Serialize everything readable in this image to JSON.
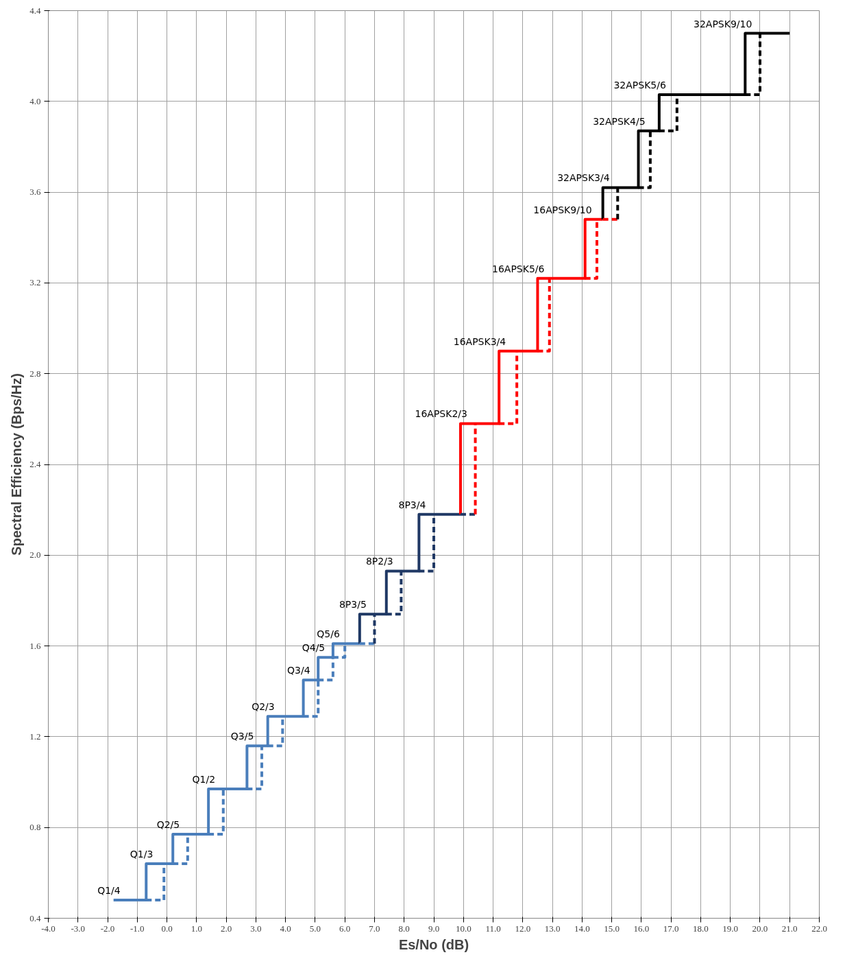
{
  "chart_data": {
    "type": "line",
    "xlabel": "Es/No (dB)",
    "ylabel": "Spectral Efficiency (Bps/Hz)",
    "xlim": [
      -4,
      22
    ],
    "ylim": [
      0.4,
      4.4
    ],
    "xticks": [
      {
        "value": -4,
        "label": "-4.0"
      },
      {
        "value": -3,
        "label": "-3.0"
      },
      {
        "value": -2,
        "label": "-2.0"
      },
      {
        "value": -1,
        "label": "-1.0"
      },
      {
        "value": 0,
        "label": "0.0"
      },
      {
        "value": 1,
        "label": "1.0"
      },
      {
        "value": 2,
        "label": "2.0"
      },
      {
        "value": 3,
        "label": "3.0"
      },
      {
        "value": 4,
        "label": "4.0"
      },
      {
        "value": 5,
        "label": "5.0"
      },
      {
        "value": 6,
        "label": "6.0"
      },
      {
        "value": 7,
        "label": "7.0"
      },
      {
        "value": 8,
        "label": "8.0"
      },
      {
        "value": 9,
        "label": "9.0"
      },
      {
        "value": 10,
        "label": "10.0"
      },
      {
        "value": 11,
        "label": "11.0"
      },
      {
        "value": 12,
        "label": "12.0"
      },
      {
        "value": 13,
        "label": "13.0"
      },
      {
        "value": 14,
        "label": "14.0"
      },
      {
        "value": 15,
        "label": "15.0"
      },
      {
        "value": 16,
        "label": "16.0"
      },
      {
        "value": 17,
        "label": "17.0"
      },
      {
        "value": 18,
        "label": "18.0"
      },
      {
        "value": 19,
        "label": "19.0"
      },
      {
        "value": 20,
        "label": "20.0"
      },
      {
        "value": 21,
        "label": "21.0"
      },
      {
        "value": 22,
        "label": "22.0"
      }
    ],
    "yticks": [
      0.4,
      0.8,
      1.2,
      1.6,
      {
        "value": 2.0,
        "label": "2.0"
      },
      2.4,
      2.8,
      3.2,
      3.6,
      {
        "value": 4.0,
        "label": "4.0"
      },
      4.4
    ],
    "grid": true,
    "series": [
      {
        "color": "#4a7ebb",
        "line_style": "solid",
        "x": [
          6.5,
          5.6,
          5.6,
          5.1,
          5.1,
          4.6,
          4.6,
          3.4,
          3.4,
          2.7,
          2.7,
          1.4,
          1.4,
          0.2,
          0.2,
          -0.7,
          -0.7,
          -1.8
        ],
        "values": [
          1.61,
          1.61,
          1.55,
          1.55,
          1.45,
          1.45,
          1.29,
          1.29,
          1.16,
          1.16,
          0.97,
          0.97,
          0.77,
          0.77,
          0.64,
          0.64,
          0.48,
          0.48
        ]
      },
      {
        "color": "#1f3864",
        "line_style": "solid",
        "x": [
          9.9,
          8.5,
          8.5,
          7.4,
          7.4,
          6.5,
          6.5
        ],
        "values": [
          2.18,
          2.18,
          1.93,
          1.93,
          1.74,
          1.74,
          1.61
        ]
      },
      {
        "color": "#ff0000",
        "line_style": "solid",
        "x": [
          14.7,
          14.1,
          14.1,
          12.5,
          12.5,
          11.2,
          11.2,
          9.9,
          9.9
        ],
        "values": [
          3.48,
          3.48,
          3.22,
          3.22,
          2.9,
          2.9,
          2.58,
          2.58,
          2.18
        ]
      },
      {
        "color": "#000000",
        "line_style": "solid",
        "x": [
          21.0,
          19.5,
          19.5,
          16.6,
          16.6,
          15.9,
          15.9,
          14.7,
          14.7
        ],
        "values": [
          4.3,
          4.3,
          4.03,
          4.03,
          3.87,
          3.87,
          3.62,
          3.62,
          3.48
        ]
      },
      {
        "color": "#4a7ebb",
        "line_style": "dashed",
        "x": [
          -0.7,
          -0.1,
          -0.1,
          null,
          0.2,
          0.7,
          0.7,
          null,
          1.4,
          1.9,
          1.9,
          null,
          2.7,
          3.2,
          3.2,
          null,
          3.4,
          3.9,
          3.9,
          null,
          4.6,
          5.1,
          5.1,
          null,
          5.1,
          5.6,
          5.6,
          null,
          5.6,
          6.0,
          6.0,
          null,
          6.5,
          7.0
        ],
        "values": [
          0.48,
          0.48,
          0.64,
          null,
          0.64,
          0.64,
          0.77,
          null,
          0.77,
          0.77,
          0.97,
          null,
          0.97,
          0.97,
          1.16,
          null,
          1.16,
          1.16,
          1.29,
          null,
          1.29,
          1.29,
          1.45,
          null,
          1.45,
          1.45,
          1.55,
          null,
          1.55,
          1.55,
          1.61,
          null,
          1.61,
          1.61
        ]
      },
      {
        "color": "#1f3864",
        "line_style": "dashed",
        "x": [
          7.0,
          7.0,
          null,
          7.4,
          7.9,
          7.9,
          null,
          8.5,
          9.0,
          9.0,
          null,
          9.9,
          10.4
        ],
        "values": [
          1.61,
          1.74,
          null,
          1.74,
          1.74,
          1.93,
          null,
          1.93,
          1.93,
          2.18,
          null,
          2.18,
          2.18
        ]
      },
      {
        "color": "#ff0000",
        "line_style": "dashed",
        "x": [
          10.4,
          10.4,
          null,
          11.2,
          11.8,
          11.8,
          null,
          12.5,
          12.9,
          12.9,
          null,
          14.1,
          14.5,
          14.5,
          null,
          14.7,
          15.2
        ],
        "values": [
          2.18,
          2.58,
          null,
          2.58,
          2.58,
          2.9,
          null,
          2.9,
          2.9,
          3.22,
          null,
          3.22,
          3.22,
          3.48,
          null,
          3.48,
          3.48
        ]
      },
      {
        "color": "#000000",
        "line_style": "dashed",
        "x": [
          15.2,
          15.2,
          null,
          15.9,
          16.3,
          16.3,
          null,
          16.6,
          17.2,
          17.2,
          null,
          19.5,
          20.0,
          20.0
        ],
        "values": [
          3.48,
          3.62,
          null,
          3.62,
          3.62,
          3.87,
          null,
          3.87,
          3.87,
          4.03,
          null,
          4.03,
          4.03,
          4.3
        ]
      }
    ],
    "annotations": [
      {
        "text": "Q1/4",
        "x": -1.8,
        "y": 0.48
      },
      {
        "text": "Q1/3",
        "x": -0.7,
        "y": 0.64
      },
      {
        "text": "Q2/5",
        "x": 0.2,
        "y": 0.77
      },
      {
        "text": "Q1/2",
        "x": 1.4,
        "y": 0.97
      },
      {
        "text": "Q3/5",
        "x": 2.7,
        "y": 1.16
      },
      {
        "text": "Q2/3",
        "x": 3.4,
        "y": 1.29
      },
      {
        "text": "Q3/4",
        "x": 4.6,
        "y": 1.45
      },
      {
        "text": "Q4/5",
        "x": 5.1,
        "y": 1.55
      },
      {
        "text": "Q5/6",
        "x": 5.6,
        "y": 1.61
      },
      {
        "text": "8P3/5",
        "x": 6.5,
        "y": 1.74
      },
      {
        "text": "8P2/3",
        "x": 7.4,
        "y": 1.93
      },
      {
        "text": "8P3/4",
        "x": 8.5,
        "y": 2.18
      },
      {
        "text": "16APSK2/3",
        "x": 9.9,
        "y": 2.58
      },
      {
        "text": "16APSK3/4",
        "x": 11.2,
        "y": 2.9
      },
      {
        "text": "16APSK5/6",
        "x": 12.5,
        "y": 3.22
      },
      {
        "text": "16APSK9/10",
        "x": 14.1,
        "y": 3.48
      },
      {
        "text": "32APSK3/4",
        "x": 14.7,
        "y": 3.62
      },
      {
        "text": "32APSK4/5",
        "x": 15.9,
        "y": 3.87
      },
      {
        "text": "32APSK5/6",
        "x": 16.6,
        "y": 4.03
      },
      {
        "text": "32APSK9/10",
        "x": 19.5,
        "y": 4.3
      }
    ]
  }
}
